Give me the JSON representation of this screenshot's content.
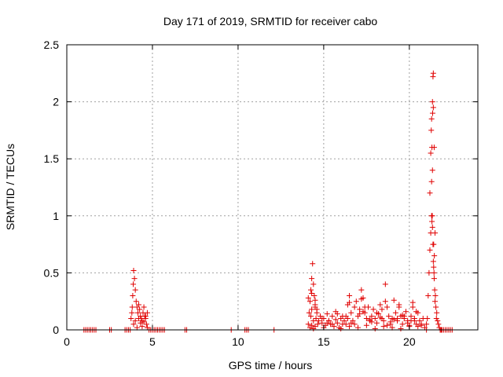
{
  "chart_data": {
    "type": "scatter",
    "title": "Day 171 of 2019, SRMTID for receiver cabo",
    "xlabel": "GPS time / hours",
    "ylabel": "SRMTID / TECUs",
    "xlim": [
      0,
      24
    ],
    "ylim": [
      0,
      2.5
    ],
    "xticks": [
      0,
      5,
      10,
      15,
      20
    ],
    "xtick_labels": [
      "0",
      "5",
      "10",
      "15",
      "20"
    ],
    "yticks": [
      0,
      0.5,
      1,
      1.5,
      2,
      2.5
    ],
    "ytick_labels": [
      "0",
      "0.5",
      "1",
      "1.5",
      "2",
      "2.5"
    ],
    "grid": true,
    "marker": "+",
    "color": "#e00000",
    "series": [
      {
        "name": "SRMTID",
        "x": [
          1.0,
          1.1,
          1.2,
          1.3,
          1.4,
          1.5,
          1.6,
          1.7,
          2.5,
          2.6,
          3.4,
          3.5,
          3.6,
          3.7,
          3.75,
          3.8,
          3.82,
          3.85,
          3.88,
          3.9,
          3.95,
          4.0,
          4.05,
          4.1,
          4.15,
          4.2,
          4.25,
          4.3,
          4.35,
          4.4,
          4.45,
          4.5,
          4.55,
          4.6,
          4.65,
          4.7,
          3.9,
          4.0,
          4.1,
          4.2,
          4.3,
          4.4,
          4.5,
          4.6,
          4.7,
          4.8,
          4.9,
          5.0,
          5.1,
          5.2,
          5.3,
          5.4,
          5.5,
          5.6,
          5.7,
          6.9,
          7.0,
          9.6,
          10.4,
          10.5,
          10.6,
          12.1,
          14.1,
          14.15,
          14.2,
          14.25,
          14.3,
          14.35,
          14.4,
          14.45,
          14.5,
          14.55,
          14.6,
          14.65,
          14.7,
          14.8,
          14.9,
          15.0,
          15.1,
          15.2,
          15.3,
          15.4,
          15.5,
          15.6,
          15.7,
          15.8,
          15.9,
          16.0,
          16.1,
          16.2,
          16.3,
          16.4,
          16.5,
          16.6,
          16.7,
          16.8,
          16.9,
          17.0,
          17.1,
          17.2,
          17.3,
          17.4,
          17.5,
          17.6,
          17.7,
          17.8,
          17.9,
          18.0,
          18.1,
          18.2,
          18.3,
          18.4,
          18.5,
          18.6,
          18.7,
          18.8,
          18.9,
          19.0,
          19.1,
          19.2,
          19.3,
          19.4,
          19.5,
          19.6,
          19.7,
          19.8,
          19.9,
          20.0,
          20.1,
          20.2,
          20.3,
          20.4,
          20.5,
          20.6,
          20.7,
          20.8,
          20.9,
          21.0,
          14.2,
          14.3,
          14.4,
          14.5,
          15.0,
          15.5,
          16.0,
          16.5,
          17.0,
          17.5,
          18.0,
          18.5,
          19.0,
          19.5,
          20.0,
          14.25,
          14.4,
          14.6,
          15.2,
          15.8,
          16.4,
          16.8,
          17.3,
          17.8,
          18.3,
          18.7,
          19.1,
          19.6,
          19.9,
          20.3,
          20.5,
          14.1,
          14.3,
          14.5,
          14.9,
          15.3,
          15.7,
          16.1,
          16.3,
          16.6,
          17.1,
          17.4,
          17.7,
          18.1,
          18.4,
          18.9,
          19.3,
          19.7,
          20.1,
          20.4,
          20.7,
          14.3,
          14.5,
          16.5,
          17.2,
          18.6,
          19.4,
          20.2,
          21.0,
          21.05,
          21.1,
          21.15,
          21.2,
          21.25,
          21.3,
          21.32,
          21.35,
          21.38,
          21.4,
          21.42,
          21.45,
          21.48,
          21.5,
          21.52,
          21.55,
          21.58,
          21.6,
          21.65,
          21.7,
          21.75,
          21.8,
          21.85,
          21.9,
          21.2,
          21.25,
          21.3,
          21.35,
          21.4,
          21.45,
          21.3,
          21.35,
          21.4,
          21.28,
          21.32,
          21.36,
          21.42,
          21.46,
          21.5,
          21.38,
          21.44,
          21.34,
          21.9,
          22.0,
          22.1,
          22.2,
          22.3,
          22.4,
          22.5
        ],
        "y": [
          0,
          0,
          0,
          0,
          0,
          0,
          0,
          0,
          0,
          0,
          0,
          0,
          0,
          0,
          0.1,
          0.15,
          0.2,
          0.3,
          0.4,
          0.52,
          0.45,
          0.35,
          0.25,
          0.2,
          0.15,
          0.22,
          0.18,
          0.12,
          0.1,
          0.08,
          0.15,
          0.2,
          0.12,
          0.1,
          0.05,
          0.15,
          0.05,
          0.08,
          0.02,
          0.1,
          0.06,
          0.03,
          0.07,
          0.12,
          0.02,
          0,
          0,
          0,
          0,
          0,
          0,
          0,
          0,
          0,
          0,
          0,
          0,
          0,
          0,
          0,
          0,
          0,
          0.05,
          0.15,
          0.25,
          0.35,
          0.45,
          0.58,
          0.4,
          0.3,
          0.2,
          0.1,
          0.15,
          0.05,
          0.08,
          0.12,
          0.06,
          0.1,
          0.04,
          0.14,
          0.08,
          0.05,
          0.12,
          0.03,
          0.09,
          0.06,
          0.02,
          0.1,
          0.05,
          0.08,
          0.12,
          0.22,
          0.3,
          0.15,
          0.08,
          0.2,
          0.25,
          0.12,
          0.18,
          0.35,
          0.28,
          0.15,
          0.1,
          0.2,
          0.08,
          0.12,
          0.18,
          0.1,
          0.06,
          0.14,
          0.22,
          0.1,
          0.08,
          0.4,
          0.2,
          0.12,
          0.05,
          0.1,
          0.26,
          0.15,
          0.08,
          0.2,
          0.12,
          0.05,
          0.1,
          0.16,
          0.08,
          0.04,
          0.12,
          0.2,
          0.1,
          0.05,
          0.15,
          0.08,
          0.04,
          0.1,
          0.02,
          0.05,
          0.02,
          0.04,
          0.01,
          0.03,
          0.02,
          0.05,
          0.01,
          0.03,
          0.02,
          0.04,
          0.01,
          0.03,
          0.02,
          0.01,
          0.03,
          0.12,
          0.08,
          0.18,
          0.06,
          0.14,
          0.1,
          0.05,
          0.16,
          0.07,
          0.11,
          0.04,
          0.09,
          0.13,
          0.06,
          0.08,
          0.03,
          0.28,
          0.18,
          0.22,
          0.1,
          0.08,
          0.16,
          0.12,
          0.05,
          0.06,
          0.14,
          0.2,
          0.09,
          0.15,
          0.18,
          0.07,
          0.1,
          0.12,
          0.08,
          0.16,
          0.05,
          0.32,
          0.26,
          0.24,
          0.27,
          0.25,
          0.22,
          0.24,
          0,
          0.1,
          0.3,
          0.5,
          0.7,
          0.85,
          1.0,
          0.95,
          0.9,
          0.75,
          0.6,
          0.55,
          0.45,
          0.35,
          0.25,
          0.3,
          0.2,
          0.1,
          0.15,
          0.08,
          0.05,
          0.02,
          0,
          0,
          0,
          1.2,
          1.55,
          1.85,
          2.0,
          2.25,
          1.6,
          1.3,
          1.4,
          1.95,
          1.75,
          1.6,
          1.9,
          0.75,
          0.65,
          0.85,
          2.22,
          0.5,
          1.0,
          0,
          0,
          0,
          0,
          0,
          0,
          0
        ]
      }
    ]
  }
}
